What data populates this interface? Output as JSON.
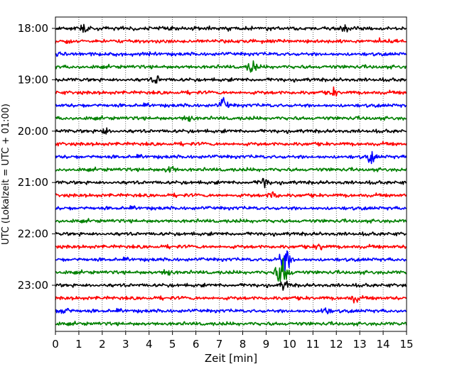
{
  "chart_data": {
    "type": "line",
    "title": "",
    "xlabel": "Zeit  [min]",
    "ylabel": "UTC (Lokalzeit = UTC + 01:00)",
    "xlim": [
      0,
      15
    ],
    "xticks": [
      0,
      1,
      2,
      3,
      4,
      5,
      6,
      7,
      8,
      9,
      10,
      11,
      12,
      13,
      14,
      15
    ],
    "xtick_labels": [
      "0",
      "1",
      "2",
      "3",
      "4",
      "5",
      "6",
      "7",
      "8",
      "9",
      "10",
      "11",
      "12",
      "13",
      "14",
      "15"
    ],
    "grid": "vertical dotted",
    "trace_start_times": [
      "18:00",
      "18:15",
      "18:30",
      "18:45",
      "19:00",
      "19:15",
      "19:30",
      "19:45",
      "20:00",
      "20:15",
      "20:30",
      "20:45",
      "21:00",
      "21:15",
      "21:30",
      "21:45",
      "22:00",
      "22:15",
      "22:30",
      "22:45",
      "23:00",
      "23:15",
      "23:30",
      "23:45"
    ],
    "ytick_labels": [
      "18:00",
      "19:00",
      "20:00",
      "21:00",
      "22:00",
      "23:00"
    ],
    "trace_colors": [
      "#000000",
      "#ff0000",
      "#0000ff",
      "#008000"
    ],
    "events": [
      {
        "trace": 0,
        "x": 1.2,
        "amp": 1.2
      },
      {
        "trace": 0,
        "x": 12.4,
        "amp": 1.0
      },
      {
        "trace": 3,
        "x": 8.4,
        "amp": 2.2
      },
      {
        "trace": 4,
        "x": 4.3,
        "amp": 1.3
      },
      {
        "trace": 5,
        "x": 11.9,
        "amp": 1.1
      },
      {
        "trace": 6,
        "x": 7.2,
        "amp": 2.0
      },
      {
        "trace": 7,
        "x": 5.7,
        "amp": 1.4
      },
      {
        "trace": 8,
        "x": 2.1,
        "amp": 1.2
      },
      {
        "trace": 10,
        "x": 13.5,
        "amp": 1.8
      },
      {
        "trace": 11,
        "x": 4.9,
        "amp": 1.5
      },
      {
        "trace": 12,
        "x": 8.9,
        "amp": 1.8
      },
      {
        "trace": 13,
        "x": 9.3,
        "amp": 1.3
      },
      {
        "trace": 17,
        "x": 11.3,
        "amp": 1.1
      },
      {
        "trace": 18,
        "x": 9.8,
        "amp": 3.6
      },
      {
        "trace": 19,
        "x": 9.7,
        "amp": 4.5
      },
      {
        "trace": 19,
        "x": 4.8,
        "amp": 1.3
      },
      {
        "trace": 20,
        "x": 9.8,
        "amp": 1.4
      },
      {
        "trace": 21,
        "x": 12.8,
        "amp": 1.1
      },
      {
        "trace": 22,
        "x": 0.4,
        "amp": 1.5
      },
      {
        "trace": 22,
        "x": 11.5,
        "amp": 1.7
      }
    ]
  }
}
